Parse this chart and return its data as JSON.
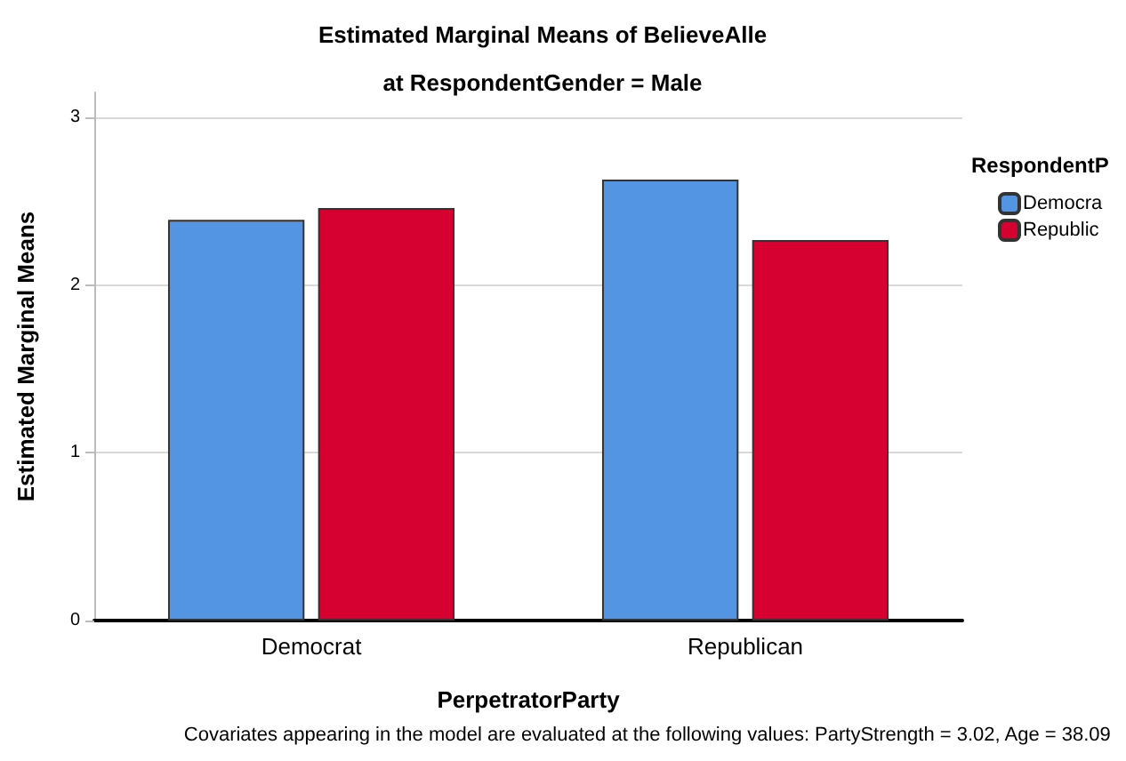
{
  "chart_data": {
    "type": "bar",
    "title": "Estimated Marginal Means of BelieveAlle",
    "subtitle": "at RespondentGender = Male",
    "xlabel": "PerpetratorParty",
    "ylabel": "Estimated Marginal Means",
    "legend_title": "RespondentP",
    "categories": [
      "Democrat",
      "Republican"
    ],
    "series": [
      {
        "name": "Democra",
        "color": "#5495e3",
        "values": [
          2.39,
          2.63
        ]
      },
      {
        "name": "Republic",
        "color": "#d60031",
        "values": [
          2.46,
          2.27
        ]
      }
    ],
    "ylim": [
      0,
      3.15
    ],
    "yticks": [
      0,
      1,
      2,
      3
    ],
    "grid": "y",
    "legend": "top right",
    "annotations": [
      "Covariates appearing in the model are evaluated at the following values: PartyStrength = 3.02, Age = 38.09"
    ]
  }
}
